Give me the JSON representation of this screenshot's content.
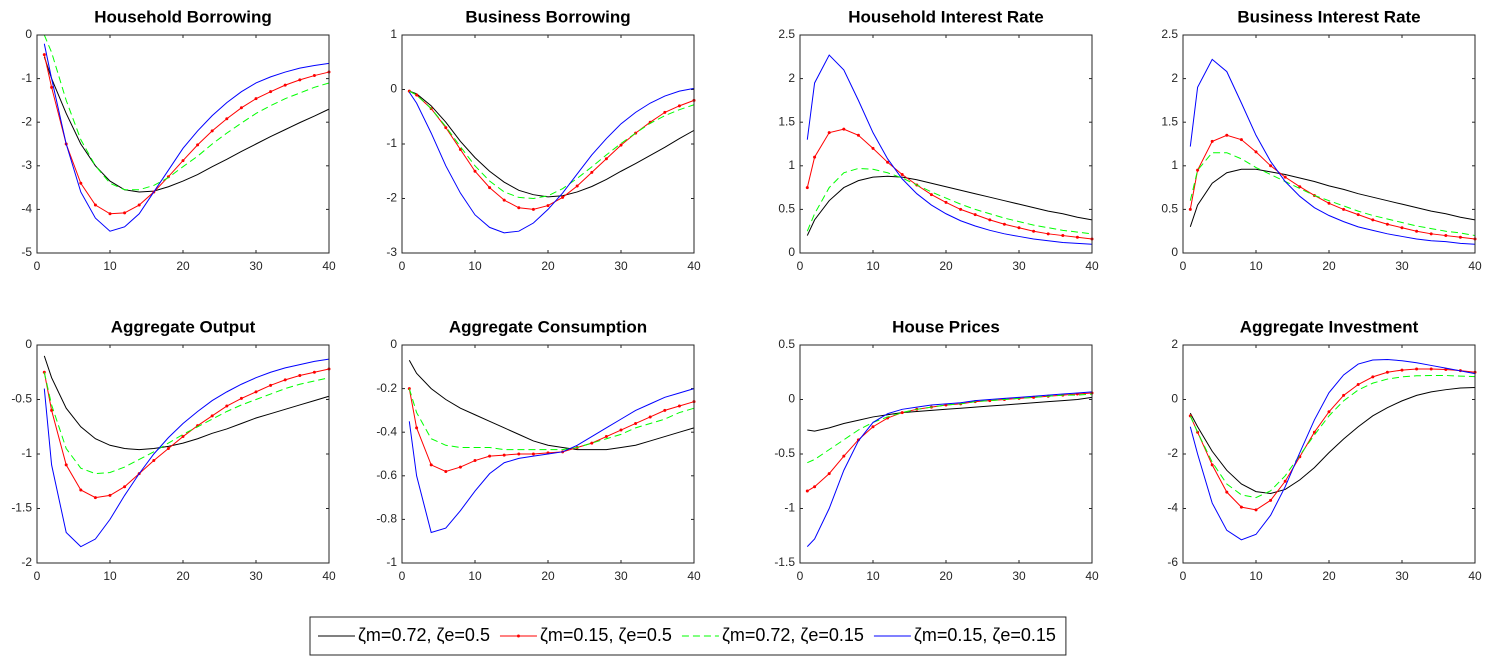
{
  "chart_data": [
    {
      "type": "line",
      "title": "Household Borrowing",
      "x": [
        1,
        2,
        4,
        6,
        8,
        10,
        12,
        14,
        16,
        18,
        20,
        22,
        24,
        26,
        28,
        30,
        32,
        34,
        36,
        38,
        40
      ],
      "xlim": [
        0,
        40
      ],
      "xticks": [
        0,
        10,
        20,
        30,
        40
      ],
      "ylim": [
        -5,
        0
      ],
      "yticks": [
        -5,
        -4,
        -3,
        -2,
        -1,
        0
      ],
      "series": [
        {
          "name": "ζm=0.72, ζe=0.5",
          "color": "#000000",
          "linestyle": "solid",
          "values": [
            -0.5,
            -1.0,
            -1.8,
            -2.5,
            -3.0,
            -3.35,
            -3.55,
            -3.6,
            -3.58,
            -3.48,
            -3.35,
            -3.2,
            -3.02,
            -2.85,
            -2.67,
            -2.5,
            -2.33,
            -2.17,
            -2.01,
            -1.86,
            -1.7
          ]
        },
        {
          "name": "ζm=0.15, ζe=0.5",
          "color": "#ff0000",
          "linestyle": "solid",
          "marker": "dot",
          "values": [
            -0.45,
            -1.2,
            -2.5,
            -3.4,
            -3.9,
            -4.1,
            -4.08,
            -3.9,
            -3.6,
            -3.25,
            -2.88,
            -2.52,
            -2.2,
            -1.92,
            -1.67,
            -1.46,
            -1.3,
            -1.15,
            -1.03,
            -0.93,
            -0.85
          ]
        },
        {
          "name": "ζm=0.72, ζe=0.15",
          "color": "#00ff00",
          "linestyle": "dashed",
          "values": [
            0,
            -0.4,
            -1.5,
            -2.4,
            -3.0,
            -3.4,
            -3.55,
            -3.55,
            -3.45,
            -3.27,
            -3.02,
            -2.78,
            -2.5,
            -2.25,
            -2.02,
            -1.8,
            -1.62,
            -1.46,
            -1.33,
            -1.2,
            -1.1
          ]
        },
        {
          "name": "ζm=0.15, ζe=0.15",
          "color": "#0000ff",
          "linestyle": "solid",
          "values": [
            -0.2,
            -1.0,
            -2.5,
            -3.6,
            -4.2,
            -4.5,
            -4.4,
            -4.1,
            -3.6,
            -3.1,
            -2.6,
            -2.2,
            -1.85,
            -1.55,
            -1.3,
            -1.1,
            -0.96,
            -0.85,
            -0.76,
            -0.7,
            -0.65
          ]
        }
      ]
    },
    {
      "type": "line",
      "title": "Business Borrowing",
      "x": [
        1,
        2,
        4,
        6,
        8,
        10,
        12,
        14,
        16,
        18,
        20,
        22,
        24,
        26,
        28,
        30,
        32,
        34,
        36,
        38,
        40
      ],
      "xlim": [
        0,
        40
      ],
      "xticks": [
        0,
        10,
        20,
        30,
        40
      ],
      "ylim": [
        -3,
        1
      ],
      "yticks": [
        -3,
        -2,
        -1,
        0,
        1
      ],
      "series": [
        {
          "values": [
            -0.03,
            -0.08,
            -0.3,
            -0.6,
            -0.95,
            -1.25,
            -1.5,
            -1.7,
            -1.85,
            -1.93,
            -1.97,
            -1.95,
            -1.88,
            -1.78,
            -1.65,
            -1.5,
            -1.36,
            -1.21,
            -1.06,
            -0.9,
            -0.75
          ]
        },
        {
          "values": [
            -0.03,
            -0.1,
            -0.35,
            -0.7,
            -1.1,
            -1.5,
            -1.8,
            -2.03,
            -2.17,
            -2.2,
            -2.13,
            -1.98,
            -1.77,
            -1.52,
            -1.27,
            -1.02,
            -0.8,
            -0.6,
            -0.42,
            -0.3,
            -0.2
          ]
        },
        {
          "values": [
            -0.03,
            -0.1,
            -0.35,
            -0.68,
            -1.05,
            -1.4,
            -1.68,
            -1.88,
            -1.98,
            -2.0,
            -1.95,
            -1.82,
            -1.63,
            -1.42,
            -1.2,
            -0.99,
            -0.8,
            -0.62,
            -0.48,
            -0.37,
            -0.28
          ]
        },
        {
          "values": [
            -0.05,
            -0.25,
            -0.8,
            -1.4,
            -1.9,
            -2.3,
            -2.53,
            -2.63,
            -2.6,
            -2.45,
            -2.2,
            -1.9,
            -1.55,
            -1.2,
            -0.9,
            -0.63,
            -0.42,
            -0.25,
            -0.12,
            -0.03,
            0.02
          ]
        }
      ]
    },
    {
      "type": "line",
      "title": "Household Interest Rate",
      "x": [
        1,
        2,
        4,
        6,
        8,
        10,
        12,
        14,
        16,
        18,
        20,
        22,
        24,
        26,
        28,
        30,
        32,
        34,
        36,
        38,
        40
      ],
      "xlim": [
        0,
        40
      ],
      "xticks": [
        0,
        10,
        20,
        30,
        40
      ],
      "ylim": [
        0,
        2.5
      ],
      "yticks": [
        0,
        0.5,
        1,
        1.5,
        2,
        2.5
      ],
      "series": [
        {
          "values": [
            0.2,
            0.38,
            0.6,
            0.75,
            0.83,
            0.87,
            0.88,
            0.87,
            0.84,
            0.8,
            0.76,
            0.72,
            0.68,
            0.64,
            0.6,
            0.56,
            0.52,
            0.48,
            0.45,
            0.41,
            0.38
          ]
        },
        {
          "values": [
            0.75,
            1.1,
            1.38,
            1.42,
            1.35,
            1.2,
            1.04,
            0.9,
            0.78,
            0.67,
            0.58,
            0.5,
            0.44,
            0.38,
            0.33,
            0.29,
            0.25,
            0.22,
            0.2,
            0.18,
            0.16
          ]
        },
        {
          "values": [
            0.25,
            0.45,
            0.75,
            0.92,
            0.97,
            0.96,
            0.92,
            0.86,
            0.78,
            0.7,
            0.63,
            0.56,
            0.5,
            0.45,
            0.4,
            0.36,
            0.32,
            0.29,
            0.26,
            0.24,
            0.22
          ]
        },
        {
          "values": [
            1.3,
            1.95,
            2.27,
            2.1,
            1.75,
            1.38,
            1.08,
            0.85,
            0.68,
            0.55,
            0.45,
            0.37,
            0.31,
            0.26,
            0.22,
            0.19,
            0.16,
            0.14,
            0.12,
            0.11,
            0.1
          ]
        }
      ]
    },
    {
      "type": "line",
      "title": "Business Interest Rate",
      "x": [
        1,
        2,
        4,
        6,
        8,
        10,
        12,
        14,
        16,
        18,
        20,
        22,
        24,
        26,
        28,
        30,
        32,
        34,
        36,
        38,
        40
      ],
      "xlim": [
        0,
        40
      ],
      "xticks": [
        0,
        10,
        20,
        30,
        40
      ],
      "ylim": [
        0,
        2.5
      ],
      "yticks": [
        0,
        0.5,
        1,
        1.5,
        2,
        2.5
      ],
      "series": [
        {
          "values": [
            0.3,
            0.55,
            0.8,
            0.92,
            0.96,
            0.96,
            0.93,
            0.9,
            0.86,
            0.82,
            0.77,
            0.73,
            0.68,
            0.64,
            0.6,
            0.56,
            0.52,
            0.48,
            0.45,
            0.41,
            0.38
          ]
        },
        {
          "values": [
            0.5,
            0.95,
            1.28,
            1.35,
            1.3,
            1.16,
            1.0,
            0.87,
            0.76,
            0.66,
            0.57,
            0.5,
            0.44,
            0.38,
            0.33,
            0.29,
            0.25,
            0.22,
            0.2,
            0.18,
            0.16
          ]
        },
        {
          "values": [
            0.6,
            0.95,
            1.15,
            1.15,
            1.08,
            0.98,
            0.9,
            0.82,
            0.74,
            0.66,
            0.6,
            0.54,
            0.48,
            0.43,
            0.39,
            0.35,
            0.31,
            0.28,
            0.25,
            0.23,
            0.2
          ]
        },
        {
          "values": [
            1.22,
            1.9,
            2.22,
            2.08,
            1.72,
            1.35,
            1.05,
            0.82,
            0.65,
            0.52,
            0.43,
            0.36,
            0.3,
            0.26,
            0.22,
            0.19,
            0.16,
            0.14,
            0.13,
            0.11,
            0.1
          ]
        }
      ]
    },
    {
      "type": "line",
      "title": "Aggregate Output",
      "x": [
        1,
        2,
        4,
        6,
        8,
        10,
        12,
        14,
        16,
        18,
        20,
        22,
        24,
        26,
        28,
        30,
        32,
        34,
        36,
        38,
        40
      ],
      "xlim": [
        0,
        40
      ],
      "xticks": [
        0,
        10,
        20,
        30,
        40
      ],
      "ylim": [
        -2,
        0
      ],
      "yticks": [
        -2,
        -1.5,
        -1,
        -0.5,
        0
      ],
      "series": [
        {
          "values": [
            -0.1,
            -0.3,
            -0.58,
            -0.75,
            -0.86,
            -0.92,
            -0.95,
            -0.96,
            -0.95,
            -0.93,
            -0.9,
            -0.86,
            -0.81,
            -0.77,
            -0.72,
            -0.67,
            -0.63,
            -0.59,
            -0.55,
            -0.51,
            -0.47
          ]
        },
        {
          "values": [
            -0.25,
            -0.6,
            -1.1,
            -1.33,
            -1.4,
            -1.38,
            -1.3,
            -1.18,
            -1.06,
            -0.95,
            -0.84,
            -0.74,
            -0.65,
            -0.56,
            -0.49,
            -0.43,
            -0.37,
            -0.32,
            -0.28,
            -0.25,
            -0.22
          ]
        },
        {
          "values": [
            -0.25,
            -0.55,
            -0.95,
            -1.13,
            -1.18,
            -1.17,
            -1.12,
            -1.05,
            -0.98,
            -0.9,
            -0.82,
            -0.75,
            -0.68,
            -0.61,
            -0.55,
            -0.5,
            -0.45,
            -0.4,
            -0.36,
            -0.33,
            -0.3
          ]
        },
        {
          "values": [
            -0.4,
            -1.1,
            -1.72,
            -1.85,
            -1.78,
            -1.6,
            -1.38,
            -1.18,
            -1.0,
            -0.85,
            -0.72,
            -0.61,
            -0.51,
            -0.43,
            -0.36,
            -0.3,
            -0.25,
            -0.21,
            -0.18,
            -0.15,
            -0.13
          ]
        }
      ]
    },
    {
      "type": "line",
      "title": "Aggregate Consumption",
      "x": [
        1,
        2,
        4,
        6,
        8,
        10,
        12,
        14,
        16,
        18,
        20,
        22,
        24,
        26,
        28,
        30,
        32,
        34,
        36,
        38,
        40
      ],
      "xlim": [
        0,
        40
      ],
      "xticks": [
        0,
        10,
        20,
        30,
        40
      ],
      "ylim": [
        -1,
        0
      ],
      "yticks": [
        -1,
        -0.8,
        -0.6,
        -0.4,
        -0.2,
        0
      ],
      "series": [
        {
          "values": [
            -0.07,
            -0.13,
            -0.2,
            -0.25,
            -0.29,
            -0.32,
            -0.35,
            -0.38,
            -0.41,
            -0.44,
            -0.46,
            -0.47,
            -0.48,
            -0.48,
            -0.48,
            -0.47,
            -0.46,
            -0.44,
            -0.42,
            -0.4,
            -0.38
          ]
        },
        {
          "values": [
            -0.2,
            -0.38,
            -0.55,
            -0.58,
            -0.56,
            -0.53,
            -0.51,
            -0.505,
            -0.5,
            -0.5,
            -0.495,
            -0.49,
            -0.47,
            -0.45,
            -0.42,
            -0.39,
            -0.36,
            -0.33,
            -0.3,
            -0.28,
            -0.26
          ]
        },
        {
          "values": [
            -0.2,
            -0.31,
            -0.43,
            -0.46,
            -0.47,
            -0.47,
            -0.47,
            -0.48,
            -0.48,
            -0.48,
            -0.48,
            -0.48,
            -0.47,
            -0.45,
            -0.43,
            -0.41,
            -0.38,
            -0.36,
            -0.34,
            -0.31,
            -0.29
          ]
        },
        {
          "values": [
            -0.35,
            -0.6,
            -0.86,
            -0.84,
            -0.76,
            -0.67,
            -0.59,
            -0.54,
            -0.52,
            -0.51,
            -0.5,
            -0.49,
            -0.46,
            -0.42,
            -0.38,
            -0.34,
            -0.3,
            -0.27,
            -0.24,
            -0.22,
            -0.2
          ]
        }
      ]
    },
    {
      "type": "line",
      "title": "House Prices",
      "x": [
        1,
        2,
        4,
        6,
        8,
        10,
        12,
        14,
        16,
        18,
        20,
        22,
        24,
        26,
        28,
        30,
        32,
        34,
        36,
        38,
        40
      ],
      "xlim": [
        0,
        40
      ],
      "xticks": [
        0,
        10,
        20,
        30,
        40
      ],
      "ylim": [
        -1.5,
        0.5
      ],
      "yticks": [
        -1.5,
        -1,
        -0.5,
        0,
        0.5
      ],
      "series": [
        {
          "values": [
            -0.28,
            -0.29,
            -0.26,
            -0.22,
            -0.19,
            -0.16,
            -0.14,
            -0.12,
            -0.11,
            -0.1,
            -0.09,
            -0.08,
            -0.07,
            -0.06,
            -0.05,
            -0.04,
            -0.03,
            -0.02,
            -0.01,
            0.0,
            0.02
          ]
        },
        {
          "values": [
            -0.84,
            -0.8,
            -0.68,
            -0.52,
            -0.37,
            -0.25,
            -0.17,
            -0.12,
            -0.09,
            -0.07,
            -0.05,
            -0.04,
            -0.02,
            -0.01,
            0.0,
            0.01,
            0.02,
            0.03,
            0.04,
            0.05,
            0.06
          ]
        },
        {
          "values": [
            -0.58,
            -0.55,
            -0.46,
            -0.37,
            -0.28,
            -0.21,
            -0.16,
            -0.12,
            -0.09,
            -0.07,
            -0.05,
            -0.04,
            -0.02,
            -0.01,
            0.0,
            0.01,
            0.02,
            0.03,
            0.04,
            0.04,
            0.05
          ]
        },
        {
          "values": [
            -1.35,
            -1.28,
            -1.0,
            -0.65,
            -0.38,
            -0.21,
            -0.13,
            -0.09,
            -0.07,
            -0.05,
            -0.04,
            -0.03,
            -0.01,
            0.0,
            0.01,
            0.02,
            0.03,
            0.04,
            0.05,
            0.06,
            0.07
          ]
        }
      ]
    },
    {
      "type": "line",
      "title": "Aggregate Investment",
      "x": [
        1,
        2,
        4,
        6,
        8,
        10,
        12,
        14,
        16,
        18,
        20,
        22,
        24,
        26,
        28,
        30,
        32,
        34,
        36,
        38,
        40
      ],
      "xlim": [
        0,
        40
      ],
      "xticks": [
        0,
        10,
        20,
        30,
        40
      ],
      "ylim": [
        -6,
        2
      ],
      "yticks": [
        -6,
        -4,
        -2,
        0,
        2
      ],
      "series": [
        {
          "values": [
            -0.5,
            -1.0,
            -1.9,
            -2.6,
            -3.1,
            -3.38,
            -3.45,
            -3.3,
            -2.95,
            -2.5,
            -1.95,
            -1.45,
            -1.0,
            -0.6,
            -0.3,
            -0.05,
            0.15,
            0.28,
            0.36,
            0.42,
            0.44
          ]
        },
        {
          "values": [
            -0.6,
            -1.2,
            -2.4,
            -3.4,
            -3.95,
            -4.05,
            -3.7,
            -3.0,
            -2.1,
            -1.2,
            -0.45,
            0.15,
            0.55,
            0.83,
            1.0,
            1.08,
            1.12,
            1.12,
            1.1,
            1.06,
            1.0
          ]
        },
        {
          "values": [
            -0.6,
            -1.2,
            -2.3,
            -3.1,
            -3.5,
            -3.6,
            -3.35,
            -2.8,
            -2.05,
            -1.3,
            -0.6,
            -0.05,
            0.35,
            0.6,
            0.75,
            0.83,
            0.87,
            0.88,
            0.88,
            0.86,
            0.84
          ]
        },
        {
          "values": [
            -1.0,
            -2.0,
            -3.8,
            -4.8,
            -5.15,
            -4.95,
            -4.25,
            -3.2,
            -1.95,
            -0.75,
            0.25,
            0.9,
            1.3,
            1.45,
            1.47,
            1.42,
            1.35,
            1.25,
            1.15,
            1.05,
            0.95
          ]
        }
      ]
    }
  ]
}
